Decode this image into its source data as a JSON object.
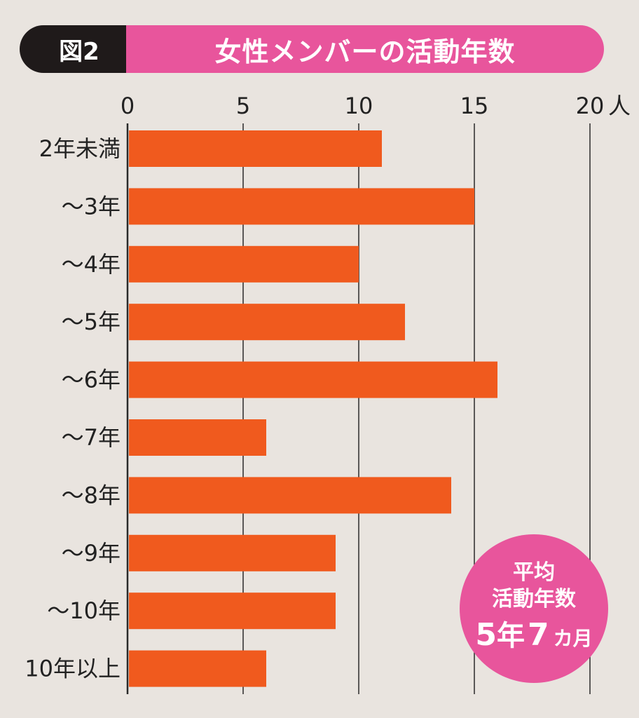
{
  "header": {
    "tag": "図2",
    "title": "女性メンバーの活動年数"
  },
  "badge": {
    "line1": "平均",
    "line2": "活動年数",
    "years": "5",
    "years_unit": "年",
    "months": "7",
    "months_unit": "カ月"
  },
  "chart_data": {
    "type": "bar",
    "orientation": "horizontal",
    "categories": [
      "2年未満",
      "〜3年",
      "〜4年",
      "〜5年",
      "〜6年",
      "〜7年",
      "〜8年",
      "〜9年",
      "〜10年",
      "10年以上"
    ],
    "values": [
      11,
      15,
      10,
      12,
      16,
      6,
      14,
      9,
      9,
      6
    ],
    "xlim": [
      0,
      20
    ],
    "xticks": [
      0,
      5,
      10,
      15,
      20
    ],
    "xunit": "人",
    "grid": true,
    "bar_color": "#f05a1e"
  }
}
